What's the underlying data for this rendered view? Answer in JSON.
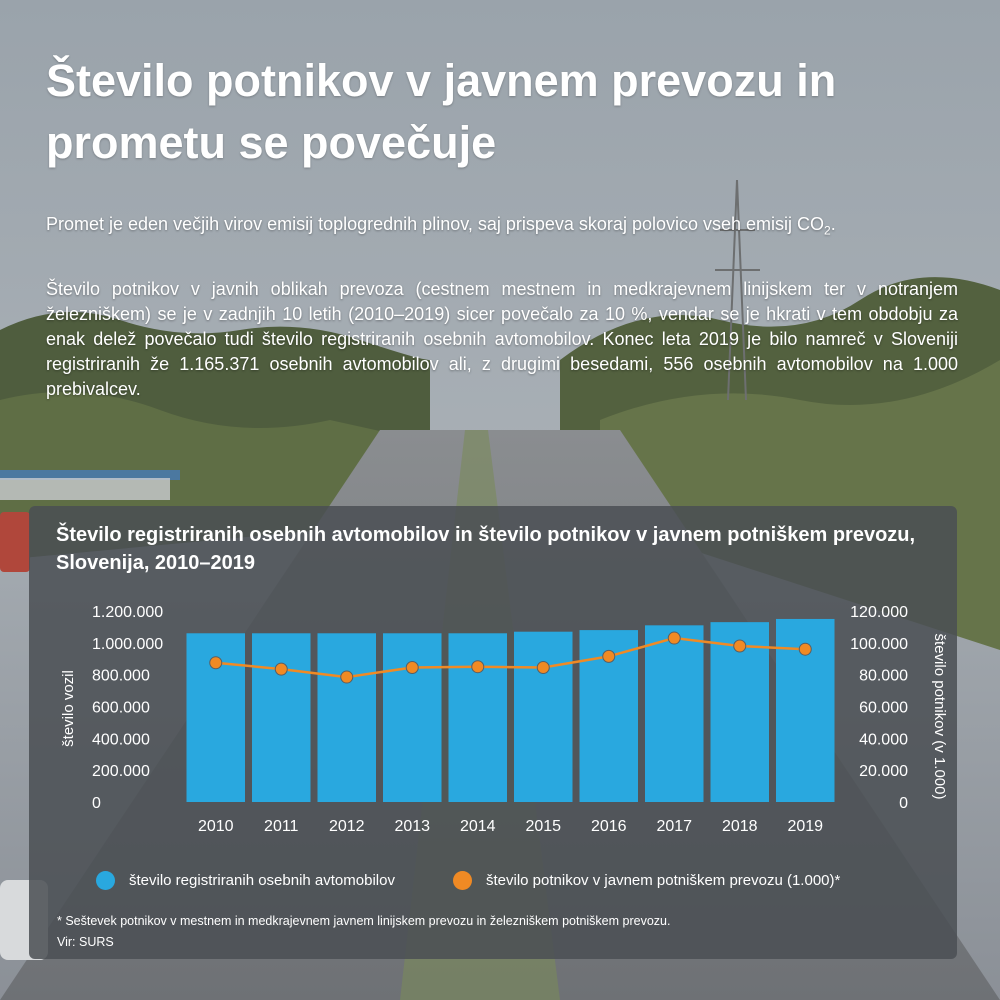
{
  "headline": "Število potnikov v javnem prevozu in prometu se povečuje",
  "paragraph_1_a": "Promet je eden večjih virov emisij toplogrednih plinov, saj prispeva skoraj polovico vseh emisij CO",
  "paragraph_1_sub": "2",
  "paragraph_1_end": ".",
  "paragraph_2": "Število potnikov v javnih oblikah prevoza (cestnem mestnem in medkrajevnem linijskem ter v notranjem železniškem) se je v zadnjih 10 letih (2010–2019) sicer povečalo za 10 %, vendar se je hkrati v tem obdobju za enak delež povečalo tudi število registriranih osebnih avtomobilov. Konec leta 2019 je bilo namreč v Sloveniji registriranih že 1.165.371 osebnih avtomobilov ali, z drugimi besedami, 556 osebnih avtomobilov na 1.000 prebivalcev.",
  "footnote": "* Seštevek potnikov v mestnem in medkrajevnem javnem linijskem prevozu in železniškem potniškem prevozu.",
  "source": "Vir: SURS",
  "chart_data": {
    "type": "bar",
    "title": "Število registriranih osebnih avtomobilov in število potnikov v javnem potniškem prevozu, Slovenija, 2010–2019",
    "categories": [
      "2010",
      "2011",
      "2012",
      "2013",
      "2014",
      "2015",
      "2016",
      "2017",
      "2018",
      "2019"
    ],
    "series": [
      {
        "name": "število registriranih osebnih avtomobilov",
        "type": "bar",
        "axis": "left",
        "color": "#29a8df",
        "values": [
          1060000,
          1060000,
          1060000,
          1060000,
          1060000,
          1070000,
          1080000,
          1110000,
          1130000,
          1150000
        ]
      },
      {
        "name": "število potnikov v javnem potniškem prevozu (1.000)*",
        "type": "line",
        "axis": "right",
        "color": "#f08a24",
        "values": [
          87500,
          83500,
          78500,
          84500,
          85000,
          84500,
          91500,
          103000,
          98000,
          96000
        ]
      }
    ],
    "ylabel": "število vozil",
    "ylabel_right": "število potnikov (v 1.000)",
    "ylim": [
      0,
      1200000
    ],
    "ylim_right": [
      0,
      120000
    ],
    "yticks": [
      "0",
      "200.000",
      "400.000",
      "600.000",
      "800.000",
      "1.000.000",
      "1.200.000"
    ],
    "yticks_right": [
      "0",
      "20.000",
      "40.000",
      "60.000",
      "80.000",
      "100.000",
      "120.000"
    ],
    "grid": false,
    "legend": "bottom"
  }
}
